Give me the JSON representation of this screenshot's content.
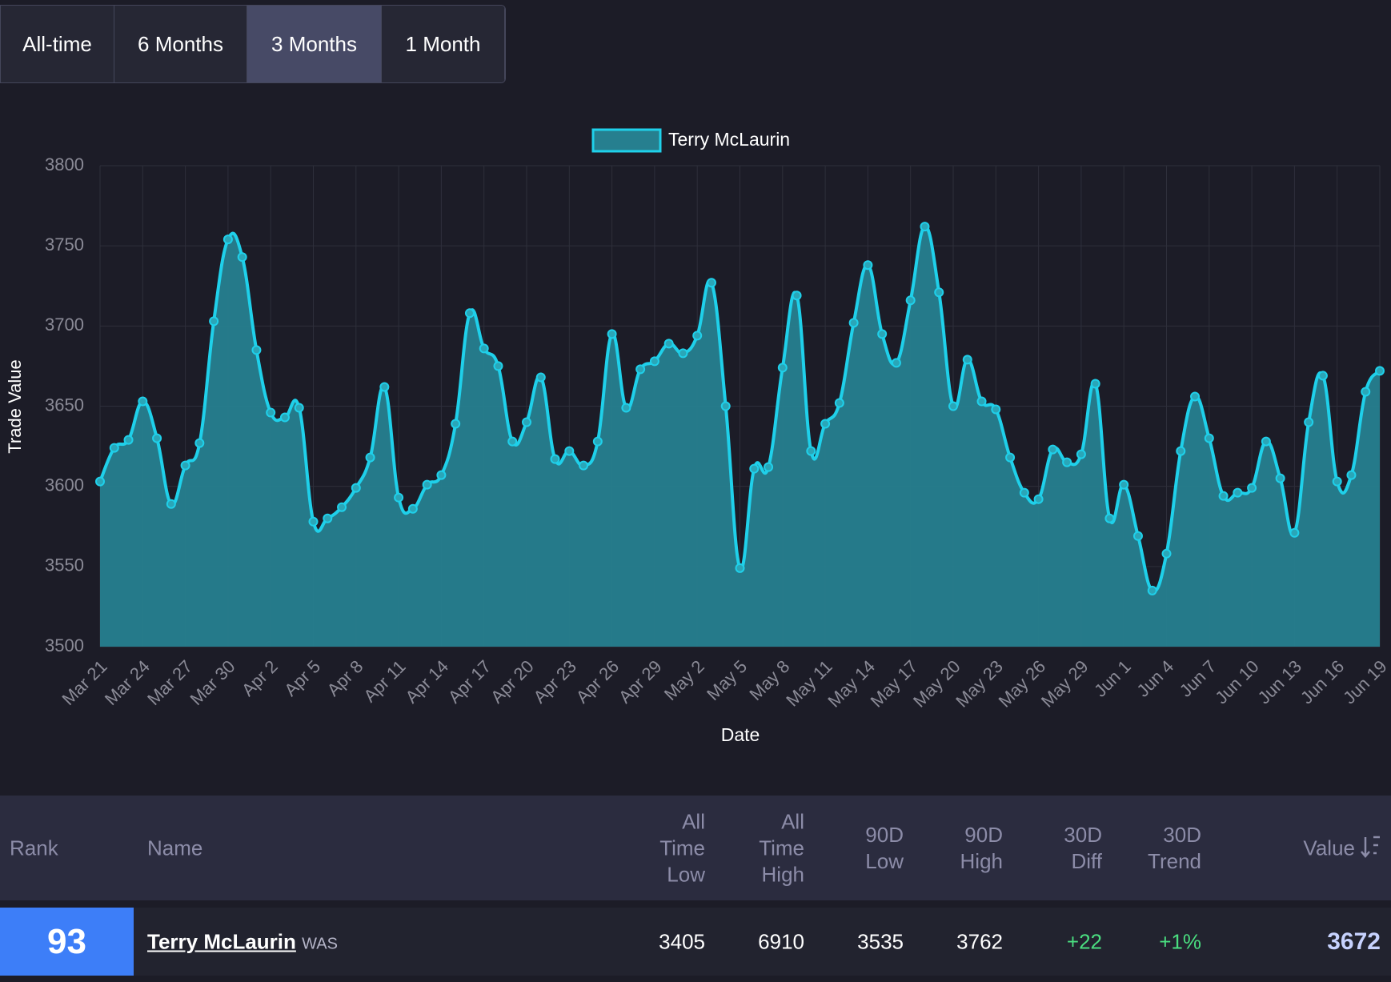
{
  "tabs": [
    "All-time",
    "6 Months",
    "3 Months",
    "1 Month"
  ],
  "active_tab": 2,
  "chart_data": {
    "type": "line",
    "y_label": "Trade Value",
    "x_label": "Date",
    "categories": [
      "Mar 21",
      null,
      null,
      "Mar 24",
      null,
      null,
      "Mar 27",
      null,
      null,
      "Mar 30",
      null,
      null,
      "Apr 2",
      null,
      null,
      "Apr 5",
      null,
      null,
      "Apr 8",
      null,
      null,
      "Apr 11",
      null,
      null,
      "Apr 14",
      null,
      null,
      "Apr 17",
      null,
      null,
      "Apr 20",
      null,
      null,
      "Apr 23",
      null,
      null,
      "Apr 26",
      null,
      null,
      "Apr 29",
      null,
      null,
      "May 2",
      null,
      null,
      "May 5",
      null,
      null,
      "May 8",
      null,
      null,
      "May 11",
      null,
      null,
      "May 14",
      null,
      null,
      "May 17",
      null,
      null,
      "May 20",
      null,
      null,
      "May 23",
      null,
      null,
      "May 26",
      null,
      null,
      "May 29",
      null,
      null,
      "Jun 1",
      null,
      null,
      "Jun 4",
      null,
      null,
      "Jun 7",
      null,
      null,
      "Jun 10",
      null,
      null,
      "Jun 13",
      null,
      null,
      "Jun 16",
      null,
      null,
      "Jun 19"
    ],
    "series": [
      {
        "name": "Terry McLaurin",
        "color": "#1fd0ea",
        "fill": "#267f8f",
        "values": [
          3603,
          3624,
          3629,
          3653,
          3630,
          3589,
          3613,
          3627,
          3703,
          3754,
          3743,
          3685,
          3646,
          3643,
          3649,
          3578,
          3580,
          3587,
          3599,
          3618,
          3662,
          3593,
          3586,
          3601,
          3607,
          3639,
          3708,
          3686,
          3675,
          3628,
          3640,
          3668,
          3617,
          3622,
          3613,
          3628,
          3695,
          3649,
          3673,
          3678,
          3689,
          3683,
          3694,
          3727,
          3650,
          3549,
          3611,
          3612,
          3674,
          3719,
          3622,
          3639,
          3652,
          3702,
          3738,
          3695,
          3677,
          3716,
          3762,
          3721,
          3650,
          3679,
          3653,
          3648,
          3618,
          3596,
          3592,
          3623,
          3615,
          3620,
          3664,
          3580,
          3601,
          3569,
          3535,
          3558,
          3622,
          3656,
          3630,
          3594,
          3596,
          3599,
          3628,
          3605,
          3571,
          3640,
          3669,
          3603,
          3607,
          3659,
          3672
        ]
      }
    ],
    "ylim": [
      3500,
      3800
    ],
    "yticks": [
      3500,
      3550,
      3600,
      3650,
      3700,
      3750,
      3800
    ],
    "grid": true,
    "legend": "top"
  },
  "table": {
    "header": [
      "Rank",
      "Name",
      "All Time Low",
      "All Time High",
      "90D Low",
      "90D High",
      "30D Diff",
      "30D Trend",
      "Value"
    ],
    "rows": [
      {
        "rank": "93",
        "name": "Terry McLaurin",
        "team": "WAS",
        "cells": [
          "3405",
          "6910",
          "3535",
          "3762",
          "+22",
          "+1%",
          "3672"
        ]
      }
    ]
  }
}
